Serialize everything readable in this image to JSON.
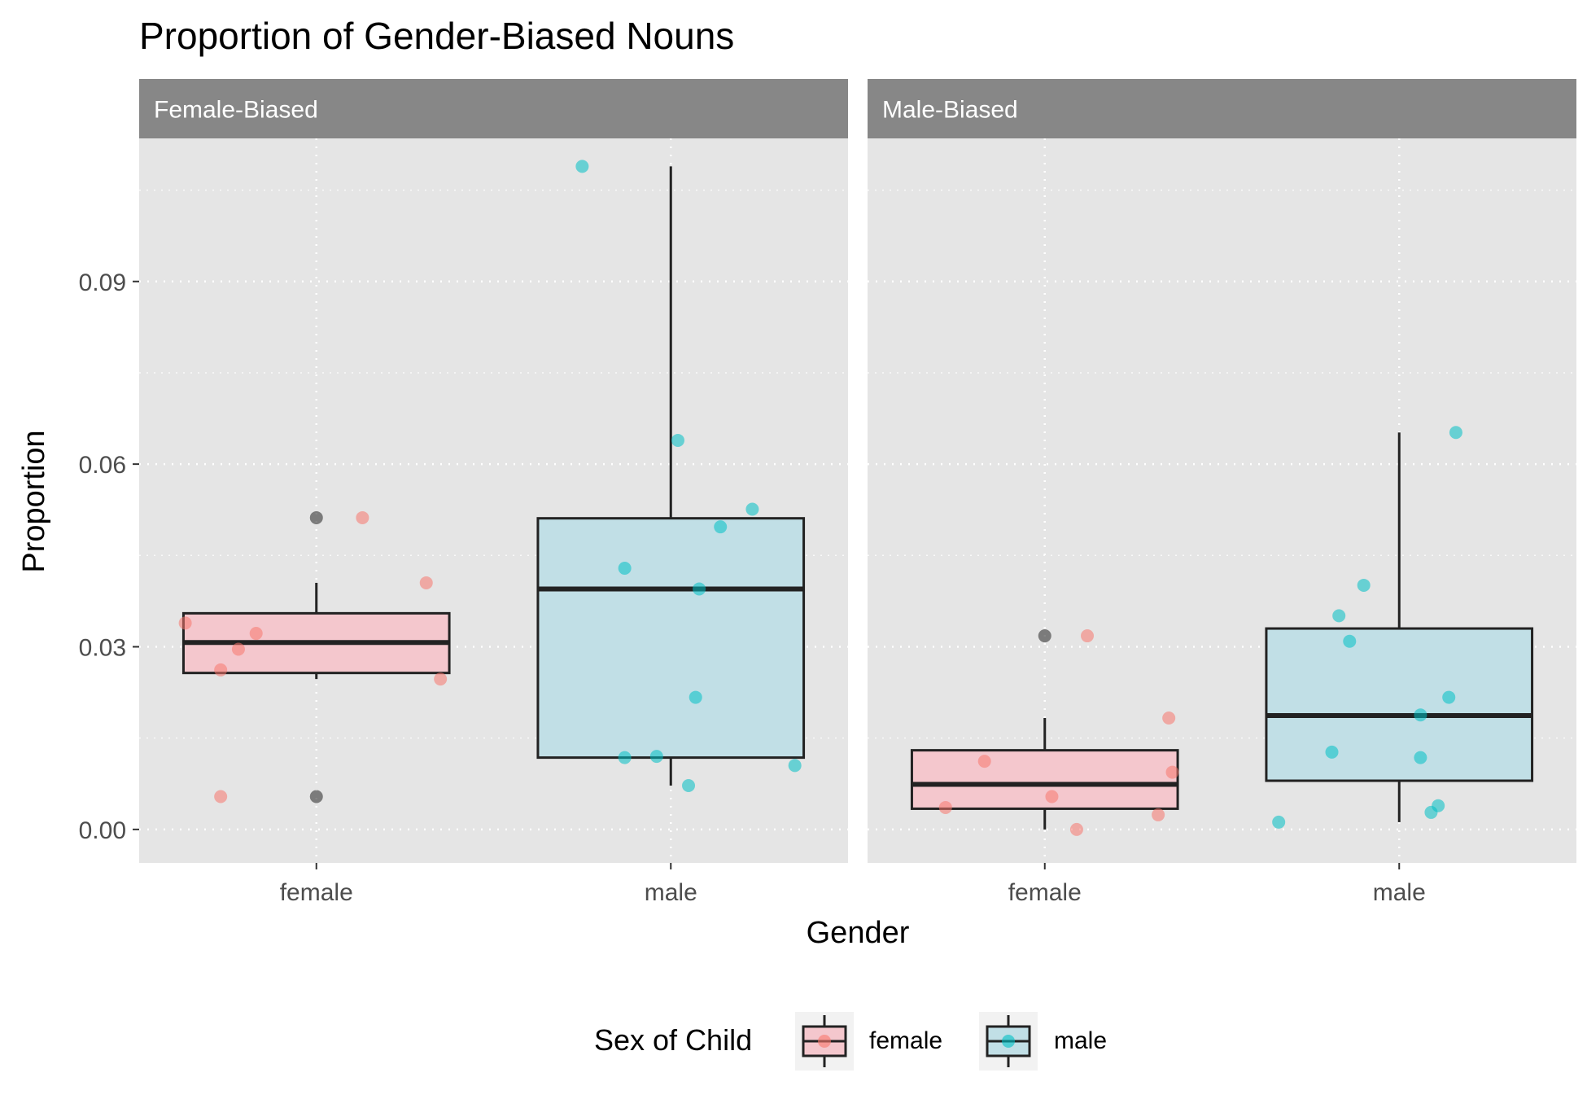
{
  "chart_data": {
    "type": "boxplot",
    "title": "Proportion of Gender-Biased Nouns",
    "xlabel": "Gender",
    "ylabel": "Proportion",
    "ylim": [
      -0.0055,
      0.1135
    ],
    "yticks": [
      0.0,
      0.03,
      0.06,
      0.09
    ],
    "ytick_labels": [
      "0.00",
      "0.03",
      "0.06",
      "0.09"
    ],
    "grid": true,
    "categories": [
      "female",
      "male"
    ],
    "legend": {
      "title": "Sex of Child",
      "position": "bottom",
      "entries": [
        {
          "label": "female",
          "fill": "#f4c7cd",
          "point": "#f8766d"
        },
        {
          "label": "male",
          "fill": "#c1dfe6",
          "point": "#00bfc4"
        }
      ]
    },
    "colors": {
      "panel_bg": "#e5e5e5",
      "strip_bg": "#878787",
      "grid": "#ffffff",
      "box_line": "#222222",
      "outlier": "#333333",
      "female_fill": "#f4c7cd",
      "male_fill": "#c1dfe6",
      "female_point": "#f8766d",
      "male_point": "#00bfc4"
    },
    "facets": [
      {
        "label": "Female-Biased",
        "boxes": [
          {
            "category": "female",
            "q1": 0.0257,
            "median": 0.0307,
            "q3": 0.0355,
            "whisker_low": 0.0247,
            "whisker_high": 0.0405,
            "outliers": [
              0.0512,
              0.0054
            ],
            "points": [
              {
                "x": -0.37,
                "y": 0.0339
              },
              {
                "x": -0.27,
                "y": 0.0262
              },
              {
                "x": -0.22,
                "y": 0.0296
              },
              {
                "x": -0.17,
                "y": 0.0322
              },
              {
                "x": 0.13,
                "y": 0.0512
              },
              {
                "x": 0.31,
                "y": 0.0405
              },
              {
                "x": 0.35,
                "y": 0.0247
              },
              {
                "x": -0.27,
                "y": 0.0054
              }
            ]
          },
          {
            "category": "male",
            "q1": 0.0118,
            "median": 0.0395,
            "q3": 0.0511,
            "whisker_low": 0.0072,
            "whisker_high": 0.1089,
            "outliers": [],
            "points": [
              {
                "x": -0.25,
                "y": 0.1089
              },
              {
                "x": 0.02,
                "y": 0.0639
              },
              {
                "x": 0.23,
                "y": 0.0526
              },
              {
                "x": 0.14,
                "y": 0.0497
              },
              {
                "x": -0.13,
                "y": 0.0429
              },
              {
                "x": 0.08,
                "y": 0.0395
              },
              {
                "x": 0.07,
                "y": 0.0217
              },
              {
                "x": -0.13,
                "y": 0.0118
              },
              {
                "x": -0.04,
                "y": 0.012
              },
              {
                "x": 0.05,
                "y": 0.0072
              },
              {
                "x": 0.35,
                "y": 0.0105
              }
            ]
          }
        ]
      },
      {
        "label": "Male-Biased",
        "boxes": [
          {
            "category": "female",
            "q1": 0.0034,
            "median": 0.0074,
            "q3": 0.013,
            "whisker_low": 0.0,
            "whisker_high": 0.0183,
            "outliers": [
              0.0318
            ],
            "points": [
              {
                "x": 0.12,
                "y": 0.0318
              },
              {
                "x": 0.35,
                "y": 0.0183
              },
              {
                "x": -0.17,
                "y": 0.0112
              },
              {
                "x": 0.36,
                "y": 0.0094
              },
              {
                "x": 0.02,
                "y": 0.0054
              },
              {
                "x": -0.28,
                "y": 0.0036
              },
              {
                "x": 0.32,
                "y": 0.0024
              },
              {
                "x": 0.09,
                "y": 0.0
              }
            ]
          },
          {
            "category": "male",
            "q1": 0.008,
            "median": 0.0187,
            "q3": 0.033,
            "whisker_low": 0.0012,
            "whisker_high": 0.0652,
            "outliers": [],
            "points": [
              {
                "x": 0.16,
                "y": 0.0652
              },
              {
                "x": -0.1,
                "y": 0.0401
              },
              {
                "x": -0.17,
                "y": 0.0351
              },
              {
                "x": -0.14,
                "y": 0.0309
              },
              {
                "x": 0.14,
                "y": 0.0217
              },
              {
                "x": 0.06,
                "y": 0.0188
              },
              {
                "x": -0.19,
                "y": 0.0127
              },
              {
                "x": 0.06,
                "y": 0.0118
              },
              {
                "x": 0.11,
                "y": 0.0039
              },
              {
                "x": 0.09,
                "y": 0.0028
              },
              {
                "x": -0.34,
                "y": 0.0012
              }
            ]
          }
        ]
      }
    ]
  }
}
